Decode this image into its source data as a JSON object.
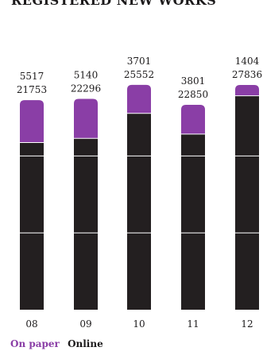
{
  "chart_data": {
    "type": "bar",
    "stacked": true,
    "title": "REGISTERED NEW WORKS",
    "categories": [
      "08",
      "09",
      "10",
      "11",
      "12"
    ],
    "series": [
      {
        "name": "On paper",
        "values": [
          5517,
          5140,
          3701,
          3801,
          1404
        ],
        "color": "#8a3ea6"
      },
      {
        "name": "Online",
        "values": [
          21753,
          22296,
          25552,
          22850,
          27836
        ],
        "color": "#231f20"
      }
    ],
    "ylim": [
      0,
      29240
    ],
    "gridlines": [
      10000,
      20000
    ],
    "grid": true,
    "legend": "bottom-left"
  }
}
